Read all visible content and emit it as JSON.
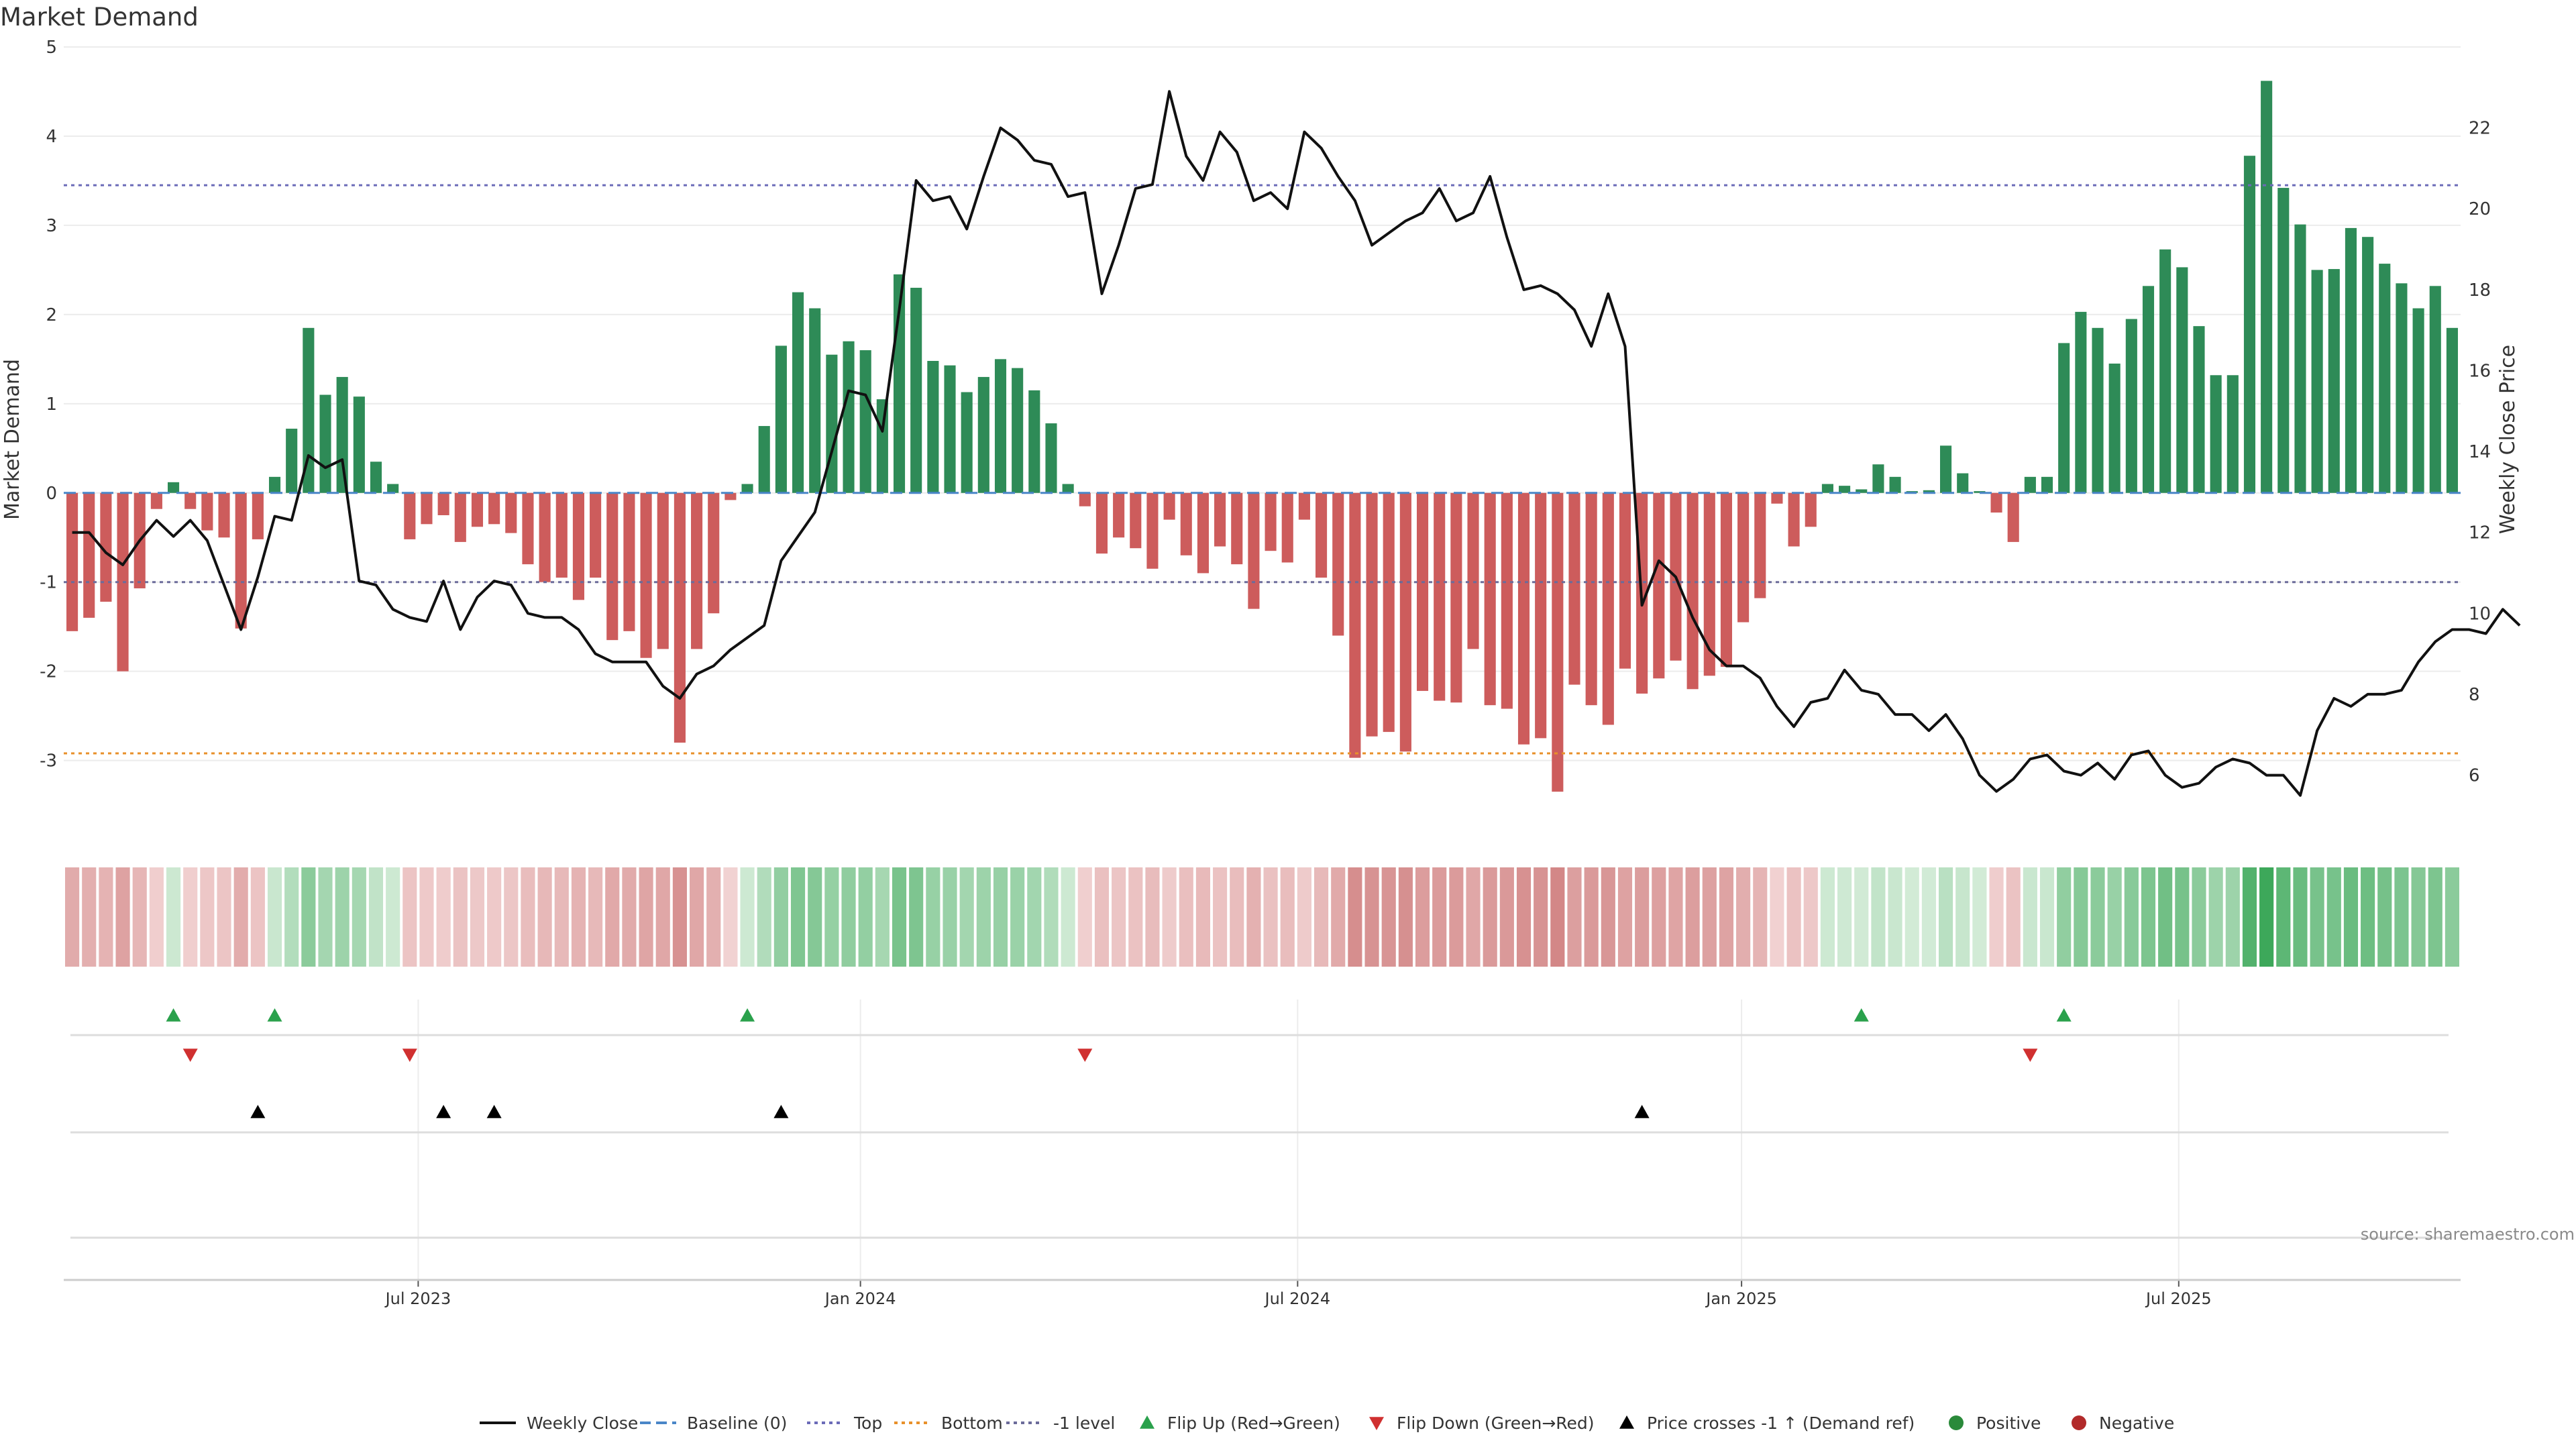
{
  "chart_data": {
    "type": "bar",
    "title": "Market Demand",
    "ylabel": "Market Demand",
    "y2label": "Weekly Close Price",
    "ylim": [
      -3.8,
      5
    ],
    "y2lim": [
      4.6,
      24.0
    ],
    "yticks": [
      -3,
      -2,
      -1,
      0,
      1,
      2,
      3,
      4,
      5
    ],
    "y2ticks": [
      6,
      8,
      10,
      12,
      14,
      16,
      18,
      20,
      22
    ],
    "xticks": [
      {
        "label": "Jul 2023",
        "index": 20.5
      },
      {
        "label": "Jan 2024",
        "index": 46.7
      },
      {
        "label": "Jul 2024",
        "index": 72.6
      },
      {
        "label": "Jan 2025",
        "index": 98.9
      },
      {
        "label": "Jul 2025",
        "index": 124.8
      }
    ],
    "reference_lines": {
      "baseline": 0,
      "top": 3.45,
      "bottom": -2.92,
      "minus_one": -1.0
    },
    "demand": [
      -1.55,
      -1.4,
      -1.22,
      -2.0,
      -1.07,
      -0.18,
      0.12,
      -0.18,
      -0.42,
      -0.5,
      -1.52,
      -0.52,
      0.18,
      0.72,
      1.85,
      1.1,
      1.3,
      1.08,
      0.35,
      0.1,
      -0.52,
      -0.35,
      -0.25,
      -0.55,
      -0.38,
      -0.35,
      -0.45,
      -0.8,
      -1.0,
      -0.95,
      -1.2,
      -0.95,
      -1.65,
      -1.55,
      -1.85,
      -1.75,
      -2.8,
      -1.75,
      -1.35,
      -0.08,
      0.1,
      0.75,
      1.65,
      2.25,
      2.07,
      1.55,
      1.7,
      1.6,
      1.05,
      2.45,
      2.3,
      1.48,
      1.43,
      1.13,
      1.3,
      1.5,
      1.4,
      1.15,
      0.78,
      0.1,
      -0.15,
      -0.68,
      -0.5,
      -0.62,
      -0.85,
      -0.3,
      -0.7,
      -0.9,
      -0.6,
      -0.8,
      -1.3,
      -0.65,
      -0.78,
      -0.3,
      -0.95,
      -1.6,
      -2.97,
      -2.73,
      -2.68,
      -2.9,
      -2.22,
      -2.33,
      -2.35,
      -1.75,
      -2.38,
      -2.42,
      -2.82,
      -2.75,
      -3.35,
      -2.15,
      -2.38,
      -2.6,
      -1.97,
      -2.25,
      -2.08,
      -1.88,
      -2.2,
      -2.05,
      -1.95,
      -1.45,
      -1.18,
      -0.12,
      -0.6,
      -0.38,
      0.1,
      0.08,
      0.04,
      0.32,
      0.18,
      0.02,
      0.03,
      0.53,
      0.22,
      0.02,
      -0.22,
      -0.55,
      0.18,
      0.18,
      1.68,
      2.03,
      1.85,
      1.45,
      1.95,
      2.32,
      2.73,
      2.53,
      1.87,
      1.32,
      1.32,
      3.78,
      4.62,
      3.42,
      3.01,
      2.5,
      2.51,
      2.97,
      2.87,
      2.57,
      2.35,
      2.07,
      2.32,
      1.85
    ],
    "weekly_close": [
      12.0,
      12.0,
      11.5,
      11.2,
      11.8,
      12.3,
      11.9,
      12.3,
      11.8,
      10.7,
      9.6,
      10.9,
      12.4,
      12.3,
      13.9,
      13.6,
      13.8,
      10.8,
      10.7,
      10.1,
      9.9,
      9.8,
      10.8,
      9.6,
      10.4,
      10.8,
      10.7,
      10.0,
      9.9,
      9.9,
      9.6,
      9.0,
      8.8,
      8.8,
      8.8,
      8.2,
      7.9,
      8.5,
      8.7,
      9.1,
      9.4,
      9.7,
      11.3,
      11.9,
      12.5,
      14.0,
      15.5,
      15.4,
      14.5,
      17.5,
      20.7,
      20.2,
      20.3,
      19.5,
      20.8,
      22.0,
      21.7,
      21.2,
      21.1,
      20.3,
      20.4,
      17.9,
      19.1,
      20.5,
      20.6,
      22.9,
      21.3,
      20.7,
      21.9,
      21.4,
      20.2,
      20.4,
      20.0,
      21.9,
      21.5,
      20.8,
      20.2,
      19.1,
      19.4,
      19.7,
      19.9,
      20.5,
      19.7,
      19.9,
      20.8,
      19.3,
      18.0,
      18.1,
      17.9,
      17.5,
      16.6,
      17.9,
      16.6,
      10.2,
      11.3,
      10.9,
      9.9,
      9.1,
      8.7,
      8.7,
      8.4,
      7.7,
      7.2,
      7.8,
      7.9,
      8.6,
      8.1,
      8.0,
      7.5,
      7.5,
      7.1,
      7.5,
      6.9,
      6.0,
      5.6,
      5.9,
      6.4,
      6.5,
      6.1,
      6.0,
      6.3,
      5.9,
      6.5,
      6.6,
      6.0,
      5.7,
      5.8,
      6.2,
      6.4,
      6.3,
      6.0,
      6.0,
      5.5,
      7.1,
      7.9,
      7.7,
      8.0,
      8.0,
      8.1,
      8.8,
      9.3,
      9.6,
      9.6,
      9.5,
      10.1,
      9.7
    ],
    "flip_up_indices": [
      6,
      12,
      40,
      106,
      118
    ],
    "flip_down_indices": [
      7,
      20,
      60,
      116
    ],
    "price_cross_indices": [
      11,
      22,
      25,
      42,
      93
    ]
  },
  "source_label": "source: sharemaestro.com",
  "legend": [
    {
      "label": "Weekly Close",
      "kind": "line",
      "color": "#111111"
    },
    {
      "label": "Baseline (0)",
      "kind": "dash",
      "color": "#4a86c8"
    },
    {
      "label": "Top",
      "kind": "dot",
      "color": "#6b6bb8"
    },
    {
      "label": "Bottom",
      "kind": "dot",
      "color": "#e8902a"
    },
    {
      "label": "-1 level",
      "kind": "dot",
      "color": "#6b6b9a"
    },
    {
      "label": "Flip Up (Red→Green)",
      "kind": "tri-up",
      "color": "#2aa14c"
    },
    {
      "label": "Flip Down (Green→Red)",
      "kind": "tri-down",
      "color": "#d03030"
    },
    {
      "label": "Price crosses -1 ↑ (Demand ref)",
      "kind": "tri-up",
      "color": "#000000"
    },
    {
      "label": "Positive",
      "kind": "circle",
      "color": "#2a8a3a"
    },
    {
      "label": "Negative",
      "kind": "circle",
      "color": "#b22a2a"
    }
  ],
  "colors": {
    "positive_bar": "#2e8b57",
    "negative_bar": "#cd5c5c",
    "price_line": "#111111",
    "baseline": "#4a86c8",
    "top_line": "#6b6bb8",
    "bottom_line": "#e8902a",
    "minus_one_line": "#6b6b9a",
    "flip_up": "#2aa14c",
    "flip_down": "#d03030",
    "cross": "#000000",
    "grid": "#ececec",
    "axis_text": "#333333"
  }
}
